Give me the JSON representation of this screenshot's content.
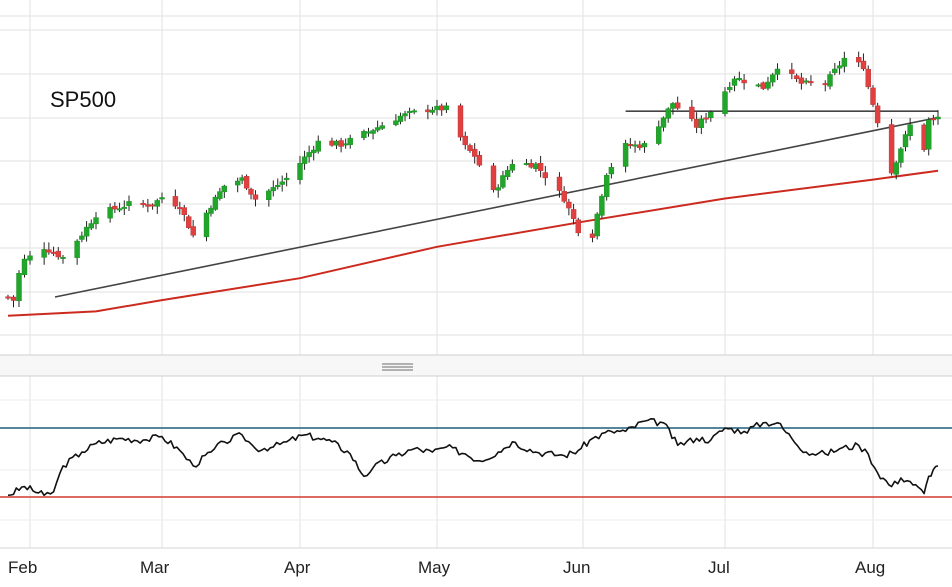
{
  "chart_data": [
    {
      "type": "candlestick",
      "title": "SP500",
      "x_unit": "date",
      "xlim": [
        "2019-01-28",
        "2019-08-15"
      ],
      "ylim": [
        2600,
        3040
      ],
      "grid": true,
      "colors": {
        "up": "#22a52b",
        "down": "#e04040",
        "wick": "#222222",
        "trendline": "#444444",
        "moving_average": "#cc2a1e"
      },
      "close_path": [
        [
          "2019-01-28",
          2645
        ],
        [
          "2019-01-29",
          2640
        ],
        [
          "2019-01-30",
          2682
        ],
        [
          "2019-01-31",
          2704
        ],
        [
          "2019-02-04",
          2724
        ],
        [
          "2019-02-08",
          2708
        ],
        [
          "2019-02-12",
          2745
        ],
        [
          "2019-02-15",
          2776
        ],
        [
          "2019-02-22",
          2793
        ],
        [
          "2019-02-27",
          2792
        ],
        [
          "2019-03-01",
          2804
        ],
        [
          "2019-03-05",
          2790
        ],
        [
          "2019-03-08",
          2743
        ],
        [
          "2019-03-12",
          2791
        ],
        [
          "2019-03-15",
          2822
        ],
        [
          "2019-03-19",
          2833
        ],
        [
          "2019-03-22",
          2801
        ],
        [
          "2019-03-26",
          2818
        ],
        [
          "2019-03-29",
          2834
        ],
        [
          "2019-04-02",
          2867
        ],
        [
          "2019-04-05",
          2892
        ],
        [
          "2019-04-10",
          2888
        ],
        [
          "2019-04-15",
          2905
        ],
        [
          "2019-04-23",
          2933
        ],
        [
          "2019-04-26",
          2939
        ],
        [
          "2019-04-30",
          2945
        ],
        [
          "2019-05-03",
          2945
        ],
        [
          "2019-05-07",
          2884
        ],
        [
          "2019-05-09",
          2870
        ],
        [
          "2019-05-13",
          2812
        ],
        [
          "2019-05-17",
          2859
        ],
        [
          "2019-05-22",
          2856
        ],
        [
          "2019-05-28",
          2802
        ],
        [
          "2019-05-31",
          2752
        ],
        [
          "2019-06-03",
          2744
        ],
        [
          "2019-06-06",
          2843
        ],
        [
          "2019-06-10",
          2886
        ],
        [
          "2019-06-14",
          2887
        ],
        [
          "2019-06-20",
          2954
        ],
        [
          "2019-06-25",
          2917
        ],
        [
          "2019-06-28",
          2941
        ],
        [
          "2019-07-03",
          2995
        ],
        [
          "2019-07-09",
          2979
        ],
        [
          "2019-07-12",
          3013
        ],
        [
          "2019-07-17",
          2985
        ],
        [
          "2019-07-22",
          2985
        ],
        [
          "2019-07-26",
          3025
        ],
        [
          "2019-07-30",
          3013
        ],
        [
          "2019-07-31",
          2980
        ],
        [
          "2019-08-01",
          2953
        ],
        [
          "2019-08-05",
          2844
        ],
        [
          "2019-08-07",
          2883
        ],
        [
          "2019-08-09",
          2918
        ],
        [
          "2019-08-12",
          2882
        ],
        [
          "2019-08-13",
          2926
        ],
        [
          "2019-08-14",
          2925
        ],
        [
          "2019-08-15",
          2931
        ]
      ],
      "annotations": [
        {
          "type": "trendline",
          "from": [
            "2019-02-08",
            2645
          ],
          "to": [
            "2019-08-15",
            2931
          ]
        },
        {
          "type": "horizontal_line",
          "from": "2019-06-10",
          "to": "2019-08-15",
          "y": 2941
        }
      ],
      "series": [
        {
          "values": [
            [
              "2019-01-28",
              2615
            ],
            [
              "2019-02-15",
              2622
            ],
            [
              "2019-03-01",
              2640
            ],
            [
              "2019-04-01",
              2675
            ],
            [
              "2019-05-01",
              2725
            ],
            [
              "2019-06-01",
              2765
            ],
            [
              "2019-07-01",
              2802
            ],
            [
              "2019-08-01",
              2832
            ],
            [
              "2019-08-15",
              2846
            ]
          ]
        }
      ],
      "x_ticks": [
        "Feb",
        "Mar",
        "Apr",
        "May",
        "Jun",
        "Jul",
        "Aug"
      ]
    },
    {
      "type": "line",
      "ylim": [
        0,
        100
      ],
      "reference_lines": [
        {
          "y": 70,
          "color": "#1f5f7a"
        },
        {
          "y": 30,
          "color": "#d43a2f"
        }
      ],
      "series": [
        {
          "values": [
            [
              "2019-01-28",
              31
            ],
            [
              "2019-01-31",
              36
            ],
            [
              "2019-02-04",
              31
            ],
            [
              "2019-02-06",
              33
            ],
            [
              "2019-02-08",
              48
            ],
            [
              "2019-02-12",
              56
            ],
            [
              "2019-02-15",
              61
            ],
            [
              "2019-02-20",
              64
            ],
            [
              "2019-02-25",
              63
            ],
            [
              "2019-03-01",
              65
            ],
            [
              "2019-03-05",
              57
            ],
            [
              "2019-03-08",
              48
            ],
            [
              "2019-03-12",
              56
            ],
            [
              "2019-03-15",
              62
            ],
            [
              "2019-03-19",
              66
            ],
            [
              "2019-03-22",
              58
            ],
            [
              "2019-03-26",
              59
            ],
            [
              "2019-03-29",
              62
            ],
            [
              "2019-04-02",
              66
            ],
            [
              "2019-04-05",
              64
            ],
            [
              "2019-04-08",
              62
            ],
            [
              "2019-04-12",
              55
            ],
            [
              "2019-04-15",
              42
            ],
            [
              "2019-04-17",
              47
            ],
            [
              "2019-04-22",
              54
            ],
            [
              "2019-04-26",
              58
            ],
            [
              "2019-04-30",
              56
            ],
            [
              "2019-05-03",
              59
            ],
            [
              "2019-05-07",
              55
            ],
            [
              "2019-05-10",
              51
            ],
            [
              "2019-05-14",
              56
            ],
            [
              "2019-05-17",
              62
            ],
            [
              "2019-05-22",
              56
            ],
            [
              "2019-05-28",
              54
            ],
            [
              "2019-05-31",
              57
            ],
            [
              "2019-06-03",
              64
            ],
            [
              "2019-06-07",
              68
            ],
            [
              "2019-06-10",
              68
            ],
            [
              "2019-06-14",
              74
            ],
            [
              "2019-06-18",
              73
            ],
            [
              "2019-06-21",
              60
            ],
            [
              "2019-06-25",
              64
            ],
            [
              "2019-06-28",
              63
            ],
            [
              "2019-07-01",
              70
            ],
            [
              "2019-07-05",
              68
            ],
            [
              "2019-07-09",
              73
            ],
            [
              "2019-07-12",
              73
            ],
            [
              "2019-07-15",
              64
            ],
            [
              "2019-07-18",
              56
            ],
            [
              "2019-07-22",
              55
            ],
            [
              "2019-07-25",
              58
            ],
            [
              "2019-07-29",
              60
            ],
            [
              "2019-07-31",
              55
            ],
            [
              "2019-08-02",
              44
            ],
            [
              "2019-08-05",
              36
            ],
            [
              "2019-08-07",
              41
            ],
            [
              "2019-08-09",
              39
            ],
            [
              "2019-08-12",
              32
            ],
            [
              "2019-08-13",
              42
            ],
            [
              "2019-08-14",
              46
            ],
            [
              "2019-08-15",
              48
            ]
          ]
        }
      ],
      "x_ticks": [
        "Feb",
        "Mar",
        "Apr",
        "May",
        "Jun",
        "Jul",
        "Aug"
      ]
    }
  ]
}
